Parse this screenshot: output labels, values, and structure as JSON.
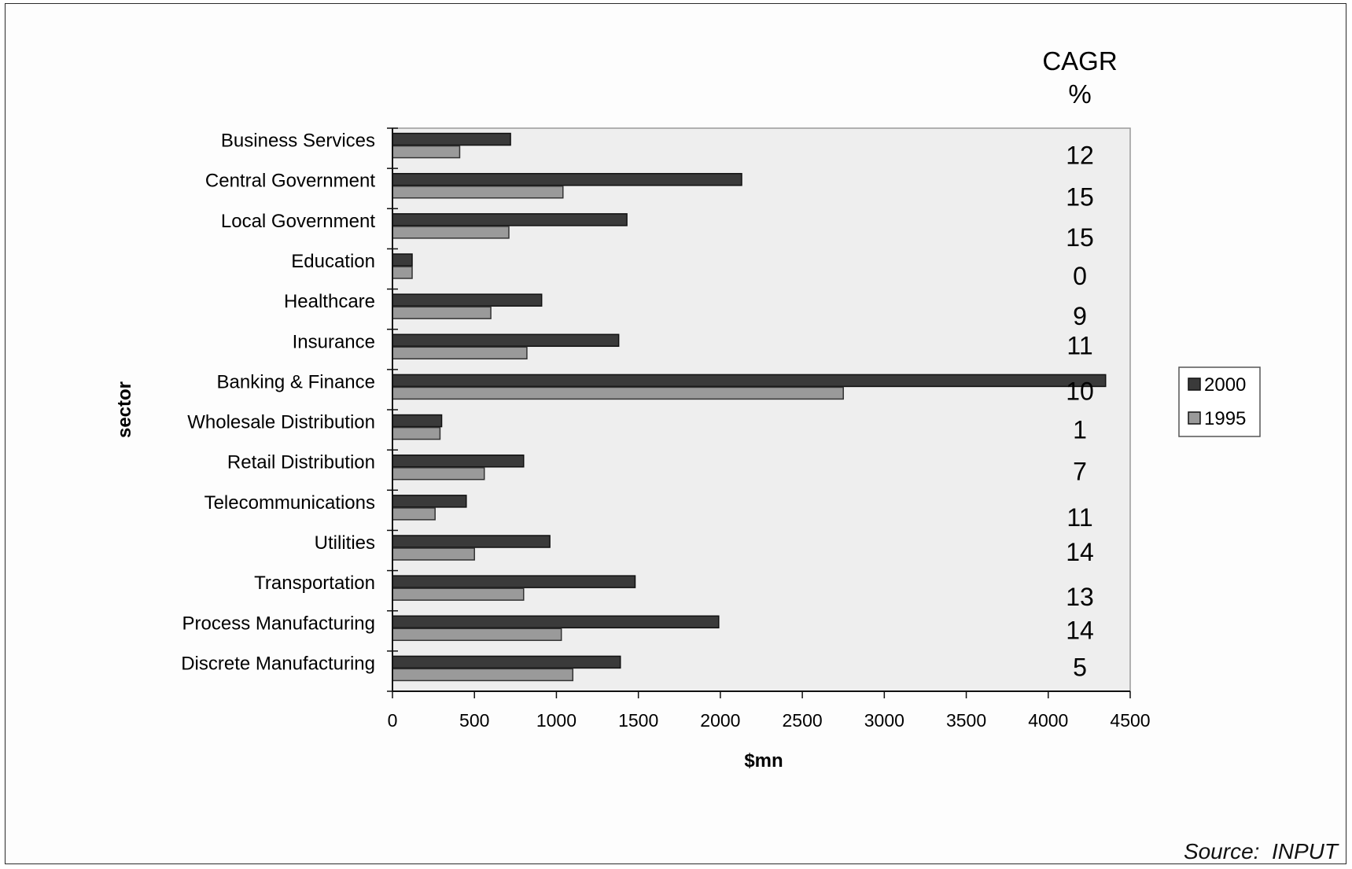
{
  "chart_data": {
    "type": "bar",
    "orientation": "horizontal",
    "categories": [
      "Business Services",
      "Central Government",
      "Local Government",
      "Education",
      "Healthcare",
      "Insurance",
      "Banking & Finance",
      "Wholesale Distribution",
      "Retail Distribution",
      "Telecommunications",
      "Utilities",
      "Transportation",
      "Process Manufacturing",
      "Discrete Manufacturing"
    ],
    "series": [
      {
        "name": "2000",
        "color": "#3a3a3a",
        "values": [
          720,
          2130,
          1430,
          120,
          910,
          1380,
          4350,
          300,
          800,
          450,
          960,
          1480,
          1990,
          1390
        ]
      },
      {
        "name": "1995",
        "color": "#9a9a9a",
        "values": [
          410,
          1040,
          710,
          120,
          600,
          820,
          2750,
          290,
          560,
          260,
          500,
          800,
          1030,
          1100
        ]
      }
    ],
    "cagr_header": [
      "CAGR",
      "%"
    ],
    "cagr": [
      "12",
      "15",
      "15",
      "0",
      "9",
      "11",
      "10",
      "1",
      "7",
      "11",
      "14",
      "13",
      "14",
      "5"
    ],
    "xlabel": "$mn",
    "ylabel": "sector",
    "xlim": [
      0,
      4500
    ],
    "xticks": [
      0,
      500,
      1000,
      1500,
      2000,
      2500,
      3000,
      3500,
      4000,
      4500
    ],
    "legend_position": "right",
    "grid": false,
    "plot_background": "#eeeeee"
  },
  "source_text": "Source:  INPUT"
}
